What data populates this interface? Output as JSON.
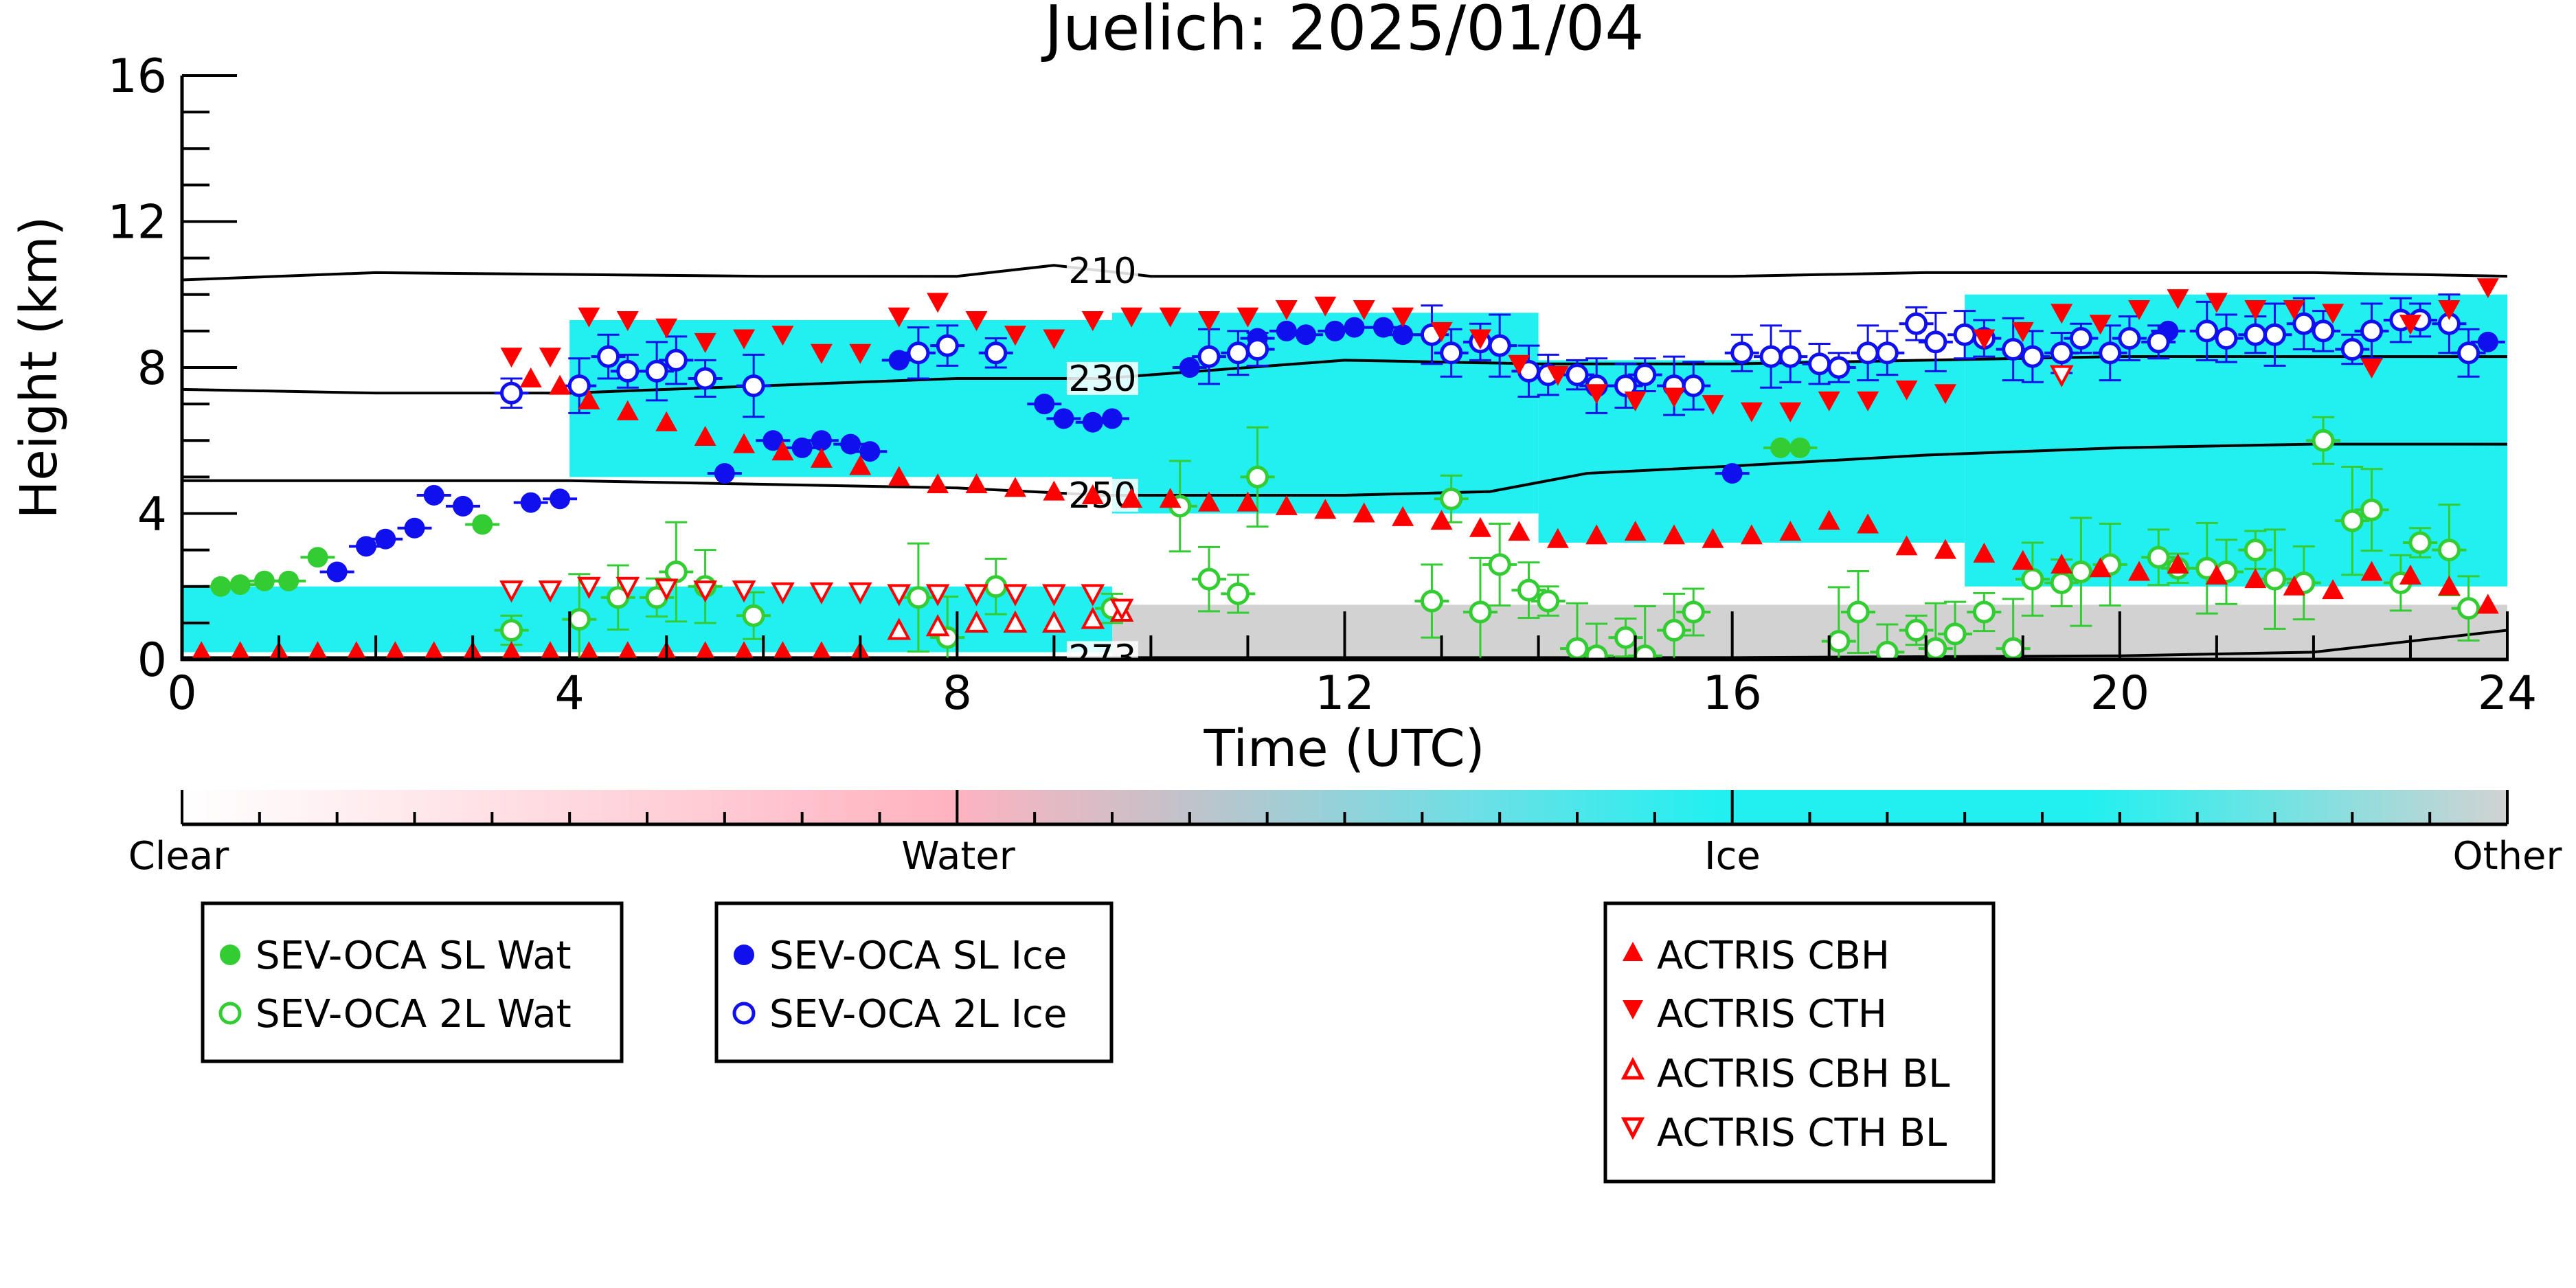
{
  "chart_data": {
    "type": "scatter",
    "title": "Juelich: 2025/01/04",
    "xlabel": "Time (UTC)",
    "ylabel": "Height (km)",
    "xlim": [
      0,
      24
    ],
    "ylim": [
      0,
      16
    ],
    "xticks": [
      0,
      4,
      8,
      12,
      16,
      20,
      24
    ],
    "yticks": [
      0,
      4,
      8,
      12,
      16
    ],
    "xtick_labels": [
      "0",
      "4",
      "8",
      "12",
      "16",
      "20",
      "24"
    ],
    "ytick_labels": [
      "0",
      "4",
      "8",
      "12",
      "16"
    ],
    "colorbar": {
      "labels": [
        "Clear",
        "Water",
        "Ice",
        "Other"
      ],
      "colors": [
        "#ffffff",
        "#ffb3c0",
        "#22f0f0",
        "#d2d2d2"
      ]
    },
    "background_classification": {
      "ice_regions": [
        {
          "x0": 4.0,
          "x1": 9.6,
          "top": 9.3,
          "base": 5.0
        },
        {
          "x0": 9.6,
          "x1": 14.0,
          "top": 9.5,
          "base": 4.0
        },
        {
          "x0": 14.0,
          "x1": 18.4,
          "top": 8.2,
          "base": 3.2
        },
        {
          "x0": 18.4,
          "x1": 24.0,
          "top": 10.0,
          "base": 2.0
        },
        {
          "x0": 0.0,
          "x1": 9.6,
          "top": 2.0,
          "base": 0.2
        }
      ],
      "other_region": {
        "x0": 9.6,
        "x1": 24.0,
        "top": 1.5,
        "base": 0.0
      }
    },
    "temperature_contours": [
      {
        "label": "210",
        "x": [
          0,
          2,
          4,
          6,
          8,
          9,
          10,
          12,
          14,
          16,
          18,
          20,
          22,
          24
        ],
        "y": [
          10.4,
          10.6,
          10.55,
          10.5,
          10.5,
          10.8,
          10.5,
          10.5,
          10.5,
          10.5,
          10.6,
          10.6,
          10.6,
          10.5
        ]
      },
      {
        "label": "230",
        "x": [
          0,
          2,
          4,
          6,
          8,
          9.5,
          10,
          12,
          14,
          16,
          18,
          20,
          22,
          24
        ],
        "y": [
          7.4,
          7.3,
          7.3,
          7.5,
          7.7,
          7.7,
          7.8,
          8.2,
          8.1,
          8.1,
          8.2,
          8.3,
          8.3,
          8.3
        ]
      },
      {
        "label": "250",
        "x": [
          0,
          2,
          4,
          6,
          8,
          9.5,
          10,
          12,
          13.5,
          14.5,
          16,
          18,
          20,
          22,
          24
        ],
        "y": [
          4.9,
          4.9,
          4.9,
          4.8,
          4.7,
          4.5,
          4.5,
          4.5,
          4.6,
          5.1,
          5.3,
          5.6,
          5.8,
          5.9,
          5.9
        ]
      },
      {
        "label": "273",
        "x": [
          0,
          4,
          8,
          12,
          16,
          20,
          22,
          23,
          24
        ],
        "y": [
          0.05,
          0.05,
          0.05,
          0.05,
          0.05,
          0.1,
          0.2,
          0.5,
          0.8
        ]
      }
    ],
    "legends": [
      {
        "entries": [
          "SEV-OCA SL Wat",
          "SEV-OCA 2L Wat"
        ]
      },
      {
        "entries": [
          "SEV-OCA SL Ice",
          "SEV-OCA 2L Ice"
        ]
      },
      {
        "entries": [
          "ACTRIS CBH",
          "ACTRIS CTH",
          "ACTRIS CBH BL",
          "ACTRIS CTH BL"
        ]
      }
    ],
    "series": [
      {
        "name": "SEV-OCA SL Wat",
        "marker": "filled-circle",
        "color": "#33cc33",
        "x": [
          0.4,
          0.6,
          0.85,
          1.1,
          1.4,
          3.1,
          16.5,
          16.7
        ],
        "y": [
          2.0,
          2.05,
          2.15,
          2.15,
          2.8,
          3.7,
          5.8,
          5.8
        ]
      },
      {
        "name": "SEV-OCA 2L Wat",
        "marker": "open-circle",
        "color": "#33cc33",
        "x": [
          3.4,
          4.1,
          4.5,
          4.9,
          5.1,
          5.4,
          5.9,
          7.6,
          7.9,
          8.4,
          9.6,
          10.3,
          10.6,
          10.9,
          11.1,
          12.9,
          13.1,
          13.4,
          13.6,
          13.9,
          14.1,
          14.4,
          14.6,
          14.9,
          15.1,
          15.4,
          15.6,
          17.1,
          17.3,
          17.6,
          17.9,
          18.1,
          18.3,
          18.6,
          18.9,
          19.1,
          19.4,
          19.6,
          19.9,
          20.4,
          20.6,
          20.9,
          21.1,
          21.4,
          21.6,
          21.9,
          22.1,
          22.4,
          22.6,
          22.9,
          23.1,
          23.4,
          23.6
        ],
        "y": [
          0.8,
          1.1,
          1.7,
          1.7,
          2.4,
          2.0,
          1.2,
          1.7,
          0.6,
          2.0,
          1.4,
          4.2,
          2.2,
          1.8,
          5.0,
          1.6,
          4.4,
          1.3,
          2.6,
          1.9,
          1.6,
          0.3,
          0.1,
          0.6,
          0.1,
          0.8,
          1.3,
          0.5,
          1.3,
          0.2,
          0.8,
          0.3,
          0.7,
          1.3,
          0.3,
          2.2,
          2.1,
          2.4,
          2.6,
          2.8,
          2.5,
          2.5,
          2.4,
          3.0,
          2.2,
          2.1,
          6.0,
          3.8,
          4.1,
          2.1,
          3.2,
          3.0,
          1.4
        ]
      },
      {
        "name": "SEV-OCA SL Ice",
        "marker": "filled-circle",
        "color": "#1010ee",
        "x": [
          1.6,
          1.9,
          2.1,
          2.4,
          2.6,
          2.9,
          3.6,
          3.9,
          5.6,
          6.1,
          6.4,
          6.6,
          6.9,
          7.1,
          7.4,
          8.9,
          9.1,
          9.4,
          9.6,
          10.4,
          11.1,
          11.4,
          11.6,
          11.9,
          12.1,
          12.4,
          12.6,
          16.0,
          20.5,
          23.8
        ],
        "y": [
          2.4,
          3.1,
          3.3,
          3.6,
          4.5,
          4.2,
          4.3,
          4.4,
          5.1,
          6.0,
          5.8,
          6.0,
          5.9,
          5.7,
          8.2,
          7.0,
          6.6,
          6.5,
          6.6,
          8.0,
          8.8,
          9.0,
          8.9,
          9.0,
          9.1,
          9.1,
          8.9,
          5.1,
          9.0,
          8.7
        ]
      },
      {
        "name": "SEV-OCA 2L Ice",
        "marker": "open-circle",
        "color": "#1010ee",
        "x": [
          3.4,
          4.1,
          4.4,
          4.6,
          4.9,
          5.1,
          5.4,
          5.9,
          7.6,
          7.9,
          8.4,
          10.6,
          10.9,
          11.1,
          12.9,
          13.1,
          13.4,
          13.6,
          13.9,
          14.1,
          14.4,
          14.6,
          14.9,
          15.1,
          15.4,
          15.6,
          16.1,
          16.4,
          16.6,
          16.9,
          17.1,
          17.4,
          17.6,
          17.9,
          18.1,
          18.4,
          18.6,
          18.9,
          19.1,
          19.4,
          19.6,
          19.9,
          20.1,
          20.4,
          20.9,
          21.1,
          21.4,
          21.6,
          21.9,
          22.1,
          22.4,
          22.6,
          22.9,
          23.1,
          23.4,
          23.6
        ],
        "y": [
          7.3,
          7.5,
          8.3,
          7.9,
          7.9,
          8.2,
          7.7,
          7.5,
          8.4,
          8.6,
          8.4,
          8.3,
          8.4,
          8.5,
          8.9,
          8.4,
          8.7,
          8.6,
          7.9,
          7.8,
          7.8,
          7.5,
          7.5,
          7.8,
          7.5,
          7.5,
          8.4,
          8.3,
          8.3,
          8.1,
          8.0,
          8.4,
          8.4,
          9.2,
          8.7,
          8.9,
          8.8,
          8.5,
          8.3,
          8.4,
          8.8,
          8.4,
          8.8,
          8.7,
          9.0,
          8.8,
          8.9,
          8.9,
          9.2,
          9.0,
          8.5,
          9.0,
          9.3,
          9.3,
          9.2,
          8.4
        ]
      },
      {
        "name": "ACTRIS CBH",
        "marker": "triangle-up-filled",
        "color": "#ff0000",
        "x": [
          0.2,
          0.6,
          1.0,
          1.4,
          1.8,
          2.2,
          2.6,
          3.0,
          3.4,
          3.8,
          4.2,
          4.6,
          5.0,
          5.4,
          5.8,
          6.2,
          6.6,
          7.0,
          7.4,
          7.8,
          8.2,
          8.6,
          9.0,
          9.4,
          9.8,
          10.2,
          10.6,
          11.0,
          11.4,
          11.8,
          12.2,
          12.6,
          13.0,
          13.4,
          13.8,
          14.2,
          14.6,
          15.0,
          15.4,
          15.8,
          16.2,
          16.6,
          17.0,
          17.4,
          17.8,
          18.2,
          18.6,
          19.0,
          19.4,
          19.8,
          20.2,
          20.6,
          21.0,
          21.4,
          21.8,
          22.2,
          22.6,
          23.0,
          23.4,
          23.8,
          3.6,
          3.9,
          4.2,
          4.6,
          5.0,
          5.4,
          5.8,
          6.2,
          6.6,
          7.0,
          7.4
        ],
        "y": [
          0.2,
          0.2,
          0.2,
          0.2,
          0.2,
          0.2,
          0.2,
          0.2,
          0.2,
          0.2,
          0.2,
          0.2,
          0.2,
          0.2,
          0.2,
          0.2,
          0.2,
          0.2,
          0.8,
          4.8,
          4.8,
          4.7,
          4.6,
          4.5,
          4.4,
          4.4,
          4.3,
          4.3,
          4.2,
          4.1,
          4.0,
          3.9,
          3.8,
          3.6,
          3.5,
          3.3,
          3.4,
          3.5,
          3.4,
          3.3,
          3.4,
          3.5,
          3.8,
          3.7,
          3.1,
          3.0,
          2.9,
          2.7,
          2.6,
          2.5,
          2.4,
          2.6,
          2.3,
          2.2,
          2.0,
          1.9,
          2.4,
          2.3,
          2.0,
          1.5,
          7.7,
          7.5,
          7.1,
          6.8,
          6.5,
          6.1,
          5.9,
          5.7,
          5.5,
          5.3,
          5.0
        ]
      },
      {
        "name": "ACTRIS CTH",
        "marker": "triangle-down-filled",
        "color": "#ff0000",
        "x": [
          3.4,
          3.8,
          4.2,
          4.6,
          5.0,
          5.4,
          5.8,
          6.2,
          6.6,
          7.0,
          7.4,
          7.8,
          8.2,
          8.6,
          9.0,
          9.4,
          9.8,
          10.2,
          10.6,
          11.0,
          11.4,
          11.8,
          12.2,
          12.6,
          13.0,
          13.4,
          13.8,
          14.2,
          14.6,
          15.0,
          15.4,
          15.8,
          16.2,
          16.6,
          17.0,
          17.4,
          17.8,
          18.2,
          18.6,
          19.0,
          19.4,
          19.8,
          20.2,
          20.6,
          21.0,
          21.4,
          21.8,
          22.2,
          22.6,
          23.0,
          23.4,
          23.8
        ],
        "y": [
          8.3,
          8.3,
          9.4,
          9.3,
          9.1,
          8.7,
          8.8,
          8.9,
          8.4,
          8.4,
          9.4,
          9.8,
          9.3,
          8.9,
          8.8,
          9.3,
          9.4,
          9.4,
          9.3,
          9.4,
          9.6,
          9.7,
          9.6,
          9.4,
          9.0,
          8.8,
          8.1,
          7.8,
          7.3,
          7.1,
          7.2,
          7.0,
          6.8,
          6.8,
          7.1,
          7.1,
          7.4,
          7.3,
          8.8,
          9.0,
          9.5,
          9.2,
          9.6,
          9.9,
          9.8,
          9.6,
          9.6,
          9.5,
          8.0,
          9.2,
          9.6,
          10.2
        ]
      },
      {
        "name": "ACTRIS CBH BL",
        "marker": "triangle-up-open",
        "color": "#ff0000",
        "x": [
          7.4,
          7.8,
          8.2,
          8.6,
          9.0,
          9.4,
          9.7
        ],
        "y": [
          0.8,
          0.9,
          1.0,
          1.0,
          1.0,
          1.1,
          1.3
        ]
      },
      {
        "name": "ACTRIS CTH BL",
        "marker": "triangle-down-open",
        "color": "#ff0000",
        "x": [
          3.4,
          3.8,
          4.2,
          4.6,
          5.0,
          5.4,
          5.8,
          6.2,
          6.6,
          7.0,
          7.4,
          7.8,
          8.2,
          8.6,
          9.0,
          9.4,
          9.7,
          19.4
        ],
        "y": [
          1.9,
          1.9,
          2.0,
          2.0,
          1.95,
          1.9,
          1.9,
          1.85,
          1.85,
          1.85,
          1.8,
          1.8,
          1.8,
          1.8,
          1.8,
          1.8,
          1.4,
          7.8
        ]
      }
    ]
  }
}
